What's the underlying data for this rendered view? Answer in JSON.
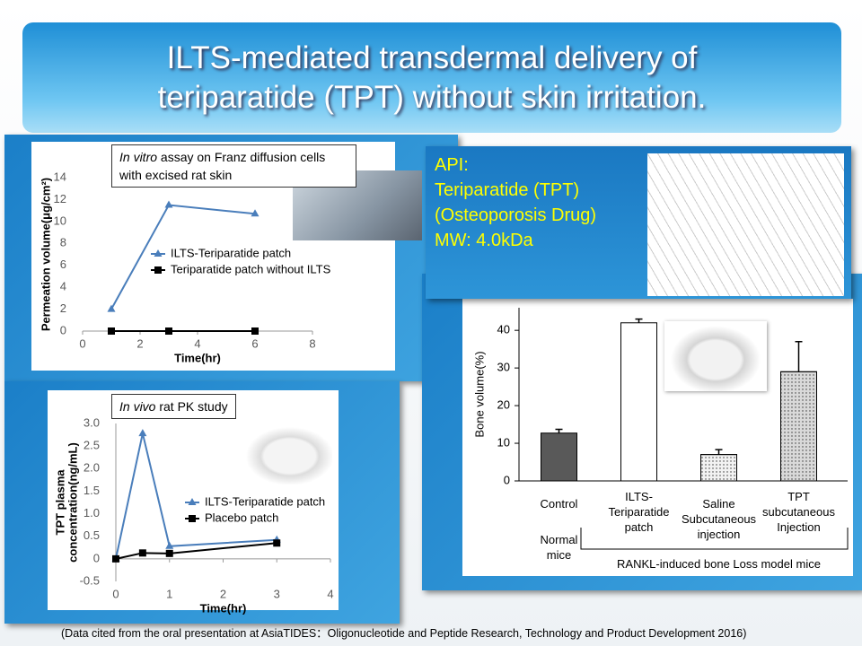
{
  "title": "ILTS-mediated transdermal delivery of teriparatide (TPT) without skin irritation.",
  "api": {
    "lines": [
      "API:",
      "Teriparatide (TPT)",
      "(Osteoporosis Drug)",
      "MW: 4.0kDa"
    ],
    "color": "#ffff00"
  },
  "footer": "(Data cited from the oral presentation at AsiaTIDES：Oligonucleotide and Peptide Research, Technology and Product Development 2016)",
  "chart_data": [
    {
      "type": "line",
      "annotation": {
        "italic": "In vitro",
        "text": "assay on Franz diffusion cells with excised rat skin"
      },
      "x_label": "Time(hr)",
      "y_label": [
        "Permeation volume(μg/cm²)"
      ],
      "xlim": [
        0,
        8
      ],
      "xticks": [
        0,
        2,
        4,
        6,
        8
      ],
      "ylim": [
        0,
        14
      ],
      "yticks": [
        0,
        2,
        4,
        6,
        8,
        10,
        12,
        14
      ],
      "x": [
        1,
        3,
        6
      ],
      "series": [
        {
          "name": "ILTS-Teriparatide patch",
          "color": "#4a7ebb",
          "marker": "triangle",
          "values": [
            2,
            11.5,
            10.7
          ]
        },
        {
          "name": "Teriparatide patch without ILTS",
          "color": "#000000",
          "marker": "square",
          "values": [
            0,
            0,
            0
          ]
        }
      ]
    },
    {
      "type": "line",
      "annotation": {
        "italic": "In vivo",
        "text": "rat PK study"
      },
      "x_label": "Time(hr)",
      "y_label": [
        "TPT plasma",
        "concentration(ng/mL)"
      ],
      "xlim": [
        0,
        4
      ],
      "xticks": [
        0,
        1,
        2,
        3,
        4
      ],
      "ylim": [
        -0.5,
        3
      ],
      "yticks": [
        -0.5,
        0,
        0.5,
        {
          "value": 1,
          "label": "1.0"
        },
        1.5,
        {
          "value": 2,
          "label": "2.0"
        },
        2.5,
        {
          "value": 3,
          "label": "3.0"
        }
      ],
      "x": [
        0,
        0.5,
        1,
        3
      ],
      "series": [
        {
          "name": "ILTS-Teriparatide patch",
          "color": "#4a7ebb",
          "marker": "triangle",
          "values": [
            0,
            2.78,
            0.28,
            0.42
          ]
        },
        {
          "name": "Placebo patch",
          "color": "#000000",
          "marker": "square",
          "values": [
            0,
            0.13,
            0.12,
            0.35
          ]
        }
      ]
    },
    {
      "type": "bar",
      "y_label": [
        "Bone volume(%)"
      ],
      "categories": [
        "Control",
        "ILTS-Teriparatide patch",
        "Saline Subcutaneous injection",
        "TPT subcutaneous Injection"
      ],
      "values": [
        12.7,
        42,
        7,
        29
      ],
      "errors": [
        1,
        1,
        1.3,
        8
      ],
      "colors": [
        "#595959",
        "#ffffff",
        "#f2f2f2",
        "#d9d9d9"
      ],
      "fill_styles": [
        "solid",
        "solid",
        "dotted",
        "dotted"
      ],
      "ylim": [
        0,
        46
      ],
      "yticks": [
        0,
        10,
        20,
        30,
        40
      ],
      "group_labels": [
        "Normal mice",
        "RANKL-induced bone Loss model mice"
      ]
    }
  ]
}
